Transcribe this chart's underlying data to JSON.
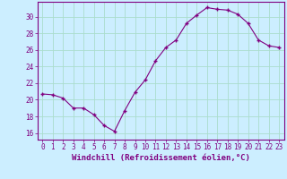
{
  "x": [
    0,
    1,
    2,
    3,
    4,
    5,
    6,
    7,
    8,
    9,
    10,
    11,
    12,
    13,
    14,
    15,
    16,
    17,
    18,
    19,
    20,
    21,
    22,
    23
  ],
  "y": [
    20.7,
    20.6,
    20.2,
    19.0,
    19.0,
    18.2,
    16.9,
    16.2,
    18.7,
    20.9,
    22.4,
    24.7,
    26.3,
    27.2,
    29.2,
    30.2,
    31.1,
    30.9,
    30.8,
    30.3,
    29.2,
    27.2,
    26.5,
    26.3
  ],
  "line_color": "#800080",
  "marker": "+",
  "markersize": 3.5,
  "linewidth": 0.8,
  "xlabel": "Windchill (Refroidissement éolien,°C)",
  "xlabel_fontsize": 6.5,
  "ylabel_ticks": [
    16,
    18,
    20,
    22,
    24,
    26,
    28,
    30
  ],
  "ylim": [
    15.2,
    31.8
  ],
  "xlim": [
    -0.5,
    23.5
  ],
  "bg_color": "#cceeff",
  "grid_color": "#aaddcc",
  "tick_color": "#800080",
  "tick_fontsize": 5.5
}
